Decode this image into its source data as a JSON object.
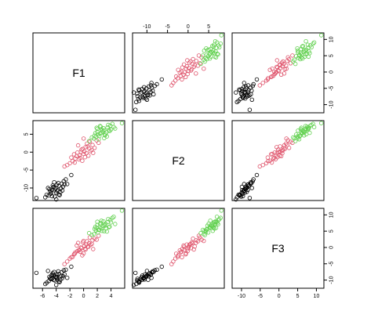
{
  "chart_data": {
    "type": "scatter",
    "title": "",
    "variables": [
      "F1",
      "F2",
      "F3"
    ],
    "axes": {
      "F1": {
        "range": [
          -7.4,
          6.0
        ],
        "ticks": [
          -6,
          -4,
          -2,
          0,
          2,
          4
        ],
        "tick_labels": [
          "-6",
          "-4",
          "-2",
          "0",
          "2",
          "4"
        ]
      },
      "F2": {
        "range": [
          -13.5,
          8.8
        ],
        "ticks": [
          -10,
          -5,
          0,
          5
        ],
        "tick_labels": [
          "-10",
          "-5",
          "0",
          "5"
        ]
      },
      "F3": {
        "range": [
          -12.5,
          12.0
        ],
        "ticks": [
          -10,
          -5,
          0,
          5,
          10
        ],
        "tick_labels": [
          "-10",
          "-5",
          "0",
          "5",
          "10"
        ]
      }
    },
    "axis_placement": {
      "top": "F2",
      "right": "F3",
      "left": "F2",
      "bottom": "F1"
    },
    "grid": false,
    "legend": "none",
    "groups": [
      {
        "color": "#000000",
        "points": [
          {
            "F1": -4.1,
            "F2": -10.2,
            "F3": -8.9
          },
          {
            "F1": -3.6,
            "F2": -9.4,
            "F3": -8.1
          },
          {
            "F1": -4.8,
            "F2": -11.6,
            "F3": -9.7
          },
          {
            "F1": -3.2,
            "F2": -8.8,
            "F3": -7.6
          },
          {
            "F1": -5.1,
            "F2": -12.1,
            "F3": -10.3
          },
          {
            "F1": -3.9,
            "F2": -10.8,
            "F3": -9.2
          },
          {
            "F1": -2.9,
            "F2": -8.1,
            "F3": -7.0
          },
          {
            "F1": -4.4,
            "F2": -9.9,
            "F3": -8.5
          },
          {
            "F1": -3.4,
            "F2": -11.2,
            "F3": -9.9
          },
          {
            "F1": -4.6,
            "F2": -10.5,
            "F3": -8.3
          },
          {
            "F1": -5.4,
            "F2": -11.9,
            "F3": -10.8
          },
          {
            "F1": -3.0,
            "F2": -9.6,
            "F3": -8.8
          },
          {
            "F1": -4.2,
            "F2": -12.4,
            "F3": -10.1
          },
          {
            "F1": -3.7,
            "F2": -8.6,
            "F3": -7.3
          },
          {
            "F1": -4.9,
            "F2": -10.9,
            "F3": -9.5
          },
          {
            "F1": -2.6,
            "F2": -7.6,
            "F3": -6.8
          },
          {
            "F1": -4.0,
            "F2": -11.3,
            "F3": -9.1
          },
          {
            "F1": -3.3,
            "F2": -10.1,
            "F3": -8.7
          },
          {
            "F1": -5.6,
            "F2": -12.6,
            "F3": -11.2
          },
          {
            "F1": -4.5,
            "F2": -9.3,
            "F3": -7.9
          },
          {
            "F1": -3.8,
            "F2": -10.6,
            "F3": -9.8
          },
          {
            "F1": -2.8,
            "F2": -9.0,
            "F3": -8.2
          },
          {
            "F1": -4.7,
            "F2": -11.1,
            "F3": -8.6
          },
          {
            "F1": -3.5,
            "F2": -12.0,
            "F3": -10.6
          },
          {
            "F1": -5.0,
            "F2": -10.3,
            "F3": -9.0
          },
          {
            "F1": -4.3,
            "F2": -8.4,
            "F3": -7.5
          },
          {
            "F1": -3.1,
            "F2": -10.7,
            "F3": -9.4
          },
          {
            "F1": -6.9,
            "F2": -12.8,
            "F3": -7.8
          },
          {
            "F1": -1.8,
            "F2": -6.4,
            "F3": -5.9
          },
          {
            "F1": -4.0,
            "F2": -13.2,
            "F3": -11.5
          },
          {
            "F1": -3.6,
            "F2": -11.8,
            "F3": -10.4
          },
          {
            "F1": -4.4,
            "F2": -9.7,
            "F3": -9.9
          },
          {
            "F1": -2.4,
            "F2": -8.9,
            "F3": -9.3
          },
          {
            "F1": -5.2,
            "F2": -10.0,
            "F3": -7.2
          },
          {
            "F1": -3.9,
            "F2": -9.1,
            "F3": -8.4
          },
          {
            "F1": -4.6,
            "F2": -12.3,
            "F3": -9.6
          }
        ]
      },
      {
        "color": "#df536b",
        "points": [
          {
            "F1": 0.1,
            "F2": 0.2,
            "F3": 0.4
          },
          {
            "F1": -0.6,
            "F2": -0.9,
            "F3": -0.7
          },
          {
            "F1": 0.8,
            "F2": 1.1,
            "F3": 1.3
          },
          {
            "F1": -1.2,
            "F2": -1.8,
            "F3": -1.5
          },
          {
            "F1": 0.4,
            "F2": -0.3,
            "F3": 0.9
          },
          {
            "F1": -0.3,
            "F2": 0.7,
            "F3": -0.2
          },
          {
            "F1": 1.3,
            "F2": 2.0,
            "F3": 2.2
          },
          {
            "F1": -1.6,
            "F2": -2.5,
            "F3": -2.9
          },
          {
            "F1": 0.6,
            "F2": 1.6,
            "F3": 0.3
          },
          {
            "F1": -0.9,
            "F2": -0.1,
            "F3": -1.1
          },
          {
            "F1": 0.2,
            "F2": -1.4,
            "F3": -0.4
          },
          {
            "F1": -0.1,
            "F2": 0.9,
            "F3": 1.6
          },
          {
            "F1": 1.0,
            "F2": 0.3,
            "F3": 0.8
          },
          {
            "F1": -2.0,
            "F2": -3.1,
            "F3": -3.4
          },
          {
            "F1": 0.5,
            "F2": 2.4,
            "F3": 1.9
          },
          {
            "F1": -0.7,
            "F2": -2.0,
            "F3": -0.9
          },
          {
            "F1": 1.6,
            "F2": 1.2,
            "F3": 2.7
          },
          {
            "F1": -1.4,
            "F2": -0.6,
            "F3": -2.1
          },
          {
            "F1": 0.0,
            "F2": -0.5,
            "F3": -1.8
          },
          {
            "F1": 0.9,
            "F2": 2.9,
            "F3": 3.1
          },
          {
            "F1": -0.4,
            "F2": 0.1,
            "F3": 0.0
          },
          {
            "F1": -2.4,
            "F2": -3.6,
            "F3": -4.3
          },
          {
            "F1": 1.9,
            "F2": 3.3,
            "F3": 2.4
          },
          {
            "F1": -1.0,
            "F2": -1.1,
            "F3": 0.6
          },
          {
            "F1": 0.3,
            "F2": 1.4,
            "F3": -0.6
          },
          {
            "F1": -0.2,
            "F2": -2.4,
            "F3": -2.4
          },
          {
            "F1": 1.2,
            "F2": 0.6,
            "F3": 1.1
          },
          {
            "F1": -1.8,
            "F2": -1.5,
            "F3": -3.0
          },
          {
            "F1": 0.7,
            "F2": -1.0,
            "F3": 0.2
          },
          {
            "F1": -0.8,
            "F2": 1.9,
            "F3": 1.4
          },
          {
            "F1": 2.2,
            "F2": 2.6,
            "F3": 3.6
          },
          {
            "F1": -0.5,
            "F2": -1.6,
            "F3": -1.3
          },
          {
            "F1": -2.8,
            "F2": -4.0,
            "F3": -5.1
          },
          {
            "F1": 0.0,
            "F2": 3.8,
            "F3": 2.0
          },
          {
            "F1": 1.4,
            "F2": -0.2,
            "F3": -0.5
          },
          {
            "F1": -1.3,
            "F2": -2.9,
            "F3": -1.9
          }
        ]
      },
      {
        "color": "#61d04f",
        "points": [
          {
            "F1": 2.4,
            "F2": 5.2,
            "F3": 6.1
          },
          {
            "F1": 3.0,
            "F2": 6.1,
            "F3": 7.0
          },
          {
            "F1": 1.8,
            "F2": 4.3,
            "F3": 5.2
          },
          {
            "F1": 3.5,
            "F2": 6.9,
            "F3": 7.8
          },
          {
            "F1": 2.1,
            "F2": 4.9,
            "F3": 4.6
          },
          {
            "F1": 2.8,
            "F2": 5.7,
            "F3": 6.6
          },
          {
            "F1": 3.9,
            "F2": 7.4,
            "F3": 8.4
          },
          {
            "F1": 1.5,
            "F2": 3.8,
            "F3": 4.1
          },
          {
            "F1": 2.6,
            "F2": 6.4,
            "F3": 5.8
          },
          {
            "F1": 3.2,
            "F2": 5.0,
            "F3": 7.3
          },
          {
            "F1": 2.0,
            "F2": 5.6,
            "F3": 6.9
          },
          {
            "F1": 3.7,
            "F2": 6.2,
            "F3": 6.2
          },
          {
            "F1": 2.3,
            "F2": 4.5,
            "F3": 5.5
          },
          {
            "F1": 4.2,
            "F2": 7.9,
            "F3": 9.1
          },
          {
            "F1": 2.9,
            "F2": 6.7,
            "F3": 8.0
          },
          {
            "F1": 1.7,
            "F2": 5.3,
            "F3": 6.3
          },
          {
            "F1": 3.3,
            "F2": 5.5,
            "F3": 5.9
          },
          {
            "F1": 2.5,
            "F2": 7.1,
            "F3": 7.5
          },
          {
            "F1": 4.6,
            "F2": 6.6,
            "F3": 7.2
          },
          {
            "F1": 1.2,
            "F2": 4.1,
            "F3": 3.8
          },
          {
            "F1": 3.1,
            "F2": 4.7,
            "F3": 6.7
          },
          {
            "F1": 2.7,
            "F2": 6.0,
            "F3": 5.1
          },
          {
            "F1": 3.6,
            "F2": 7.6,
            "F3": 8.7
          },
          {
            "F1": 2.2,
            "F2": 3.6,
            "F3": 5.4
          },
          {
            "F1": 4.0,
            "F2": 6.3,
            "F3": 7.7
          },
          {
            "F1": 1.9,
            "F2": 6.8,
            "F3": 6.0
          },
          {
            "F1": 3.4,
            "F2": 4.4,
            "F3": 4.9
          },
          {
            "F1": 2.6,
            "F2": 5.4,
            "F3": 8.2
          },
          {
            "F1": 5.6,
            "F2": 8.1,
            "F3": 11.3
          },
          {
            "F1": 0.8,
            "F2": 3.1,
            "F3": 4.4
          },
          {
            "F1": 3.8,
            "F2": 5.9,
            "F3": 6.4
          },
          {
            "F1": 2.4,
            "F2": 7.3,
            "F3": 7.1
          },
          {
            "F1": 1.6,
            "F2": 4.6,
            "F3": 5.7
          },
          {
            "F1": 4.4,
            "F2": 7.0,
            "F3": 9.4
          },
          {
            "F1": 3.0,
            "F2": 3.9,
            "F3": 5.0
          },
          {
            "F1": 2.0,
            "F2": 6.5,
            "F3": 7.9
          }
        ]
      }
    ]
  }
}
